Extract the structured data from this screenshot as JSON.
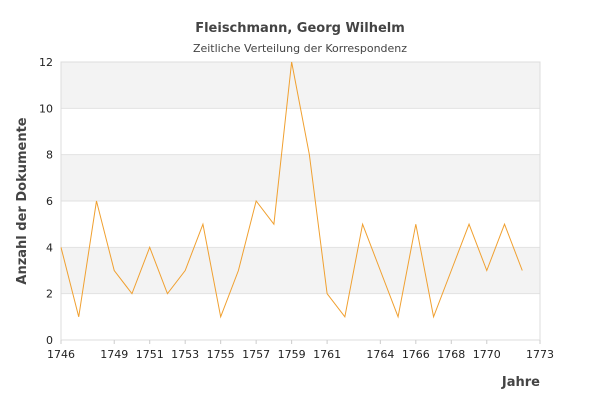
{
  "chart_data": {
    "type": "line",
    "title": "Fleischmann, Georg Wilhelm",
    "subtitle": "Zeitliche Verteilung der Korrespondenz",
    "xlabel": "Jahre",
    "ylabel": "Anzahl der Dokumente",
    "xlim": [
      1746,
      1773
    ],
    "ylim": [
      0,
      12
    ],
    "yticks": [
      0,
      2,
      4,
      6,
      8,
      10,
      12
    ],
    "xticks": [
      1746,
      1749,
      1751,
      1753,
      1755,
      1757,
      1759,
      1761,
      1764,
      1766,
      1768,
      1770,
      1773
    ],
    "grid": "horizontal-bands",
    "line_color": "#f0a030",
    "series": [
      {
        "x": [
          1746,
          1747,
          1748,
          1749,
          1750,
          1751,
          1752,
          1753,
          1754,
          1755,
          1756,
          1757,
          1758,
          1759,
          1760,
          1761,
          1762,
          1763,
          1764,
          1765,
          1766,
          1767,
          1768,
          1769,
          1770,
          1771,
          1772
        ],
        "values": [
          4,
          1,
          6,
          3,
          2,
          4,
          2,
          3,
          5,
          1,
          3,
          6,
          5,
          12,
          8,
          2,
          1,
          5,
          3,
          1,
          5,
          1,
          3,
          5,
          3,
          5,
          3
        ]
      }
    ]
  }
}
